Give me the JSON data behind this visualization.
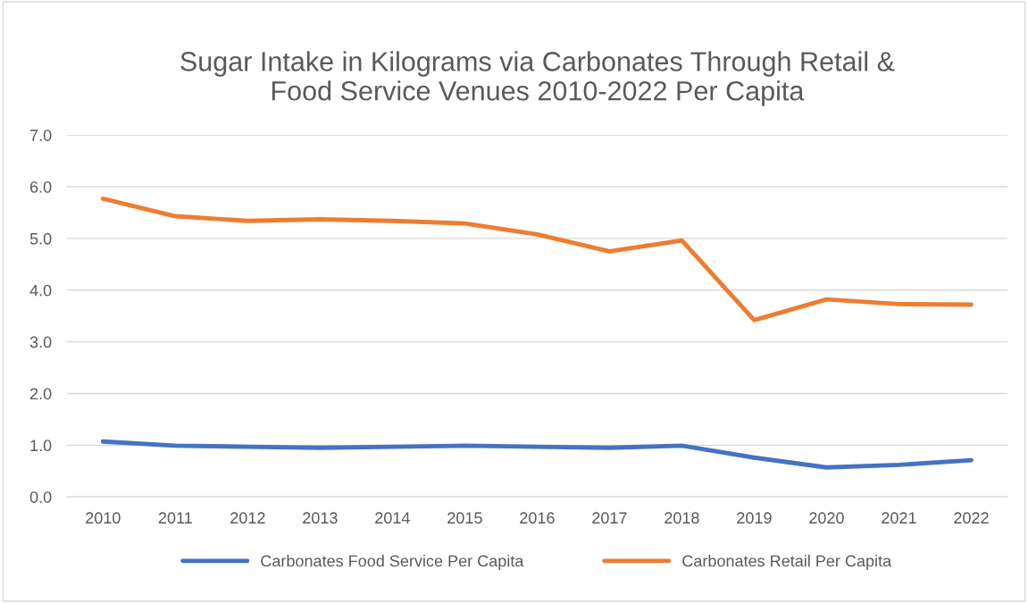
{
  "chart_data": {
    "type": "line",
    "title": "Sugar Intake in Kilograms via Carbonates Through Retail &\nFood Service Venues 2010-2022 Per Capita",
    "categories": [
      "2010",
      "2011",
      "2012",
      "2013",
      "2014",
      "2015",
      "2016",
      "2017",
      "2018",
      "2019",
      "2020",
      "2021",
      "2022"
    ],
    "series": [
      {
        "name": "Carbonates Food Service Per Capita",
        "color": "#4472c4",
        "values": [
          1.07,
          0.99,
          0.97,
          0.95,
          0.97,
          0.99,
          0.97,
          0.95,
          0.99,
          0.76,
          0.57,
          0.62,
          0.71
        ]
      },
      {
        "name": "Carbonates Retail Per Capita",
        "color": "#ed7d31",
        "values": [
          5.77,
          5.43,
          5.34,
          5.37,
          5.34,
          5.29,
          5.08,
          4.75,
          4.96,
          3.42,
          3.82,
          3.73,
          3.72
        ]
      }
    ],
    "ylim": [
      0,
      7
    ],
    "yticks": [
      {
        "value": 0,
        "label": "0.0"
      },
      {
        "value": 1,
        "label": "1.0"
      },
      {
        "value": 2,
        "label": "2.0"
      },
      {
        "value": 3,
        "label": "3.0"
      },
      {
        "value": 4,
        "label": "4.0"
      },
      {
        "value": 5,
        "label": "5.0"
      },
      {
        "value": 6,
        "label": "6.0"
      },
      {
        "value": 7,
        "label": "7.0"
      }
    ],
    "grid": "y",
    "legend": "bottom",
    "marker": "none",
    "line_style": "solid"
  }
}
